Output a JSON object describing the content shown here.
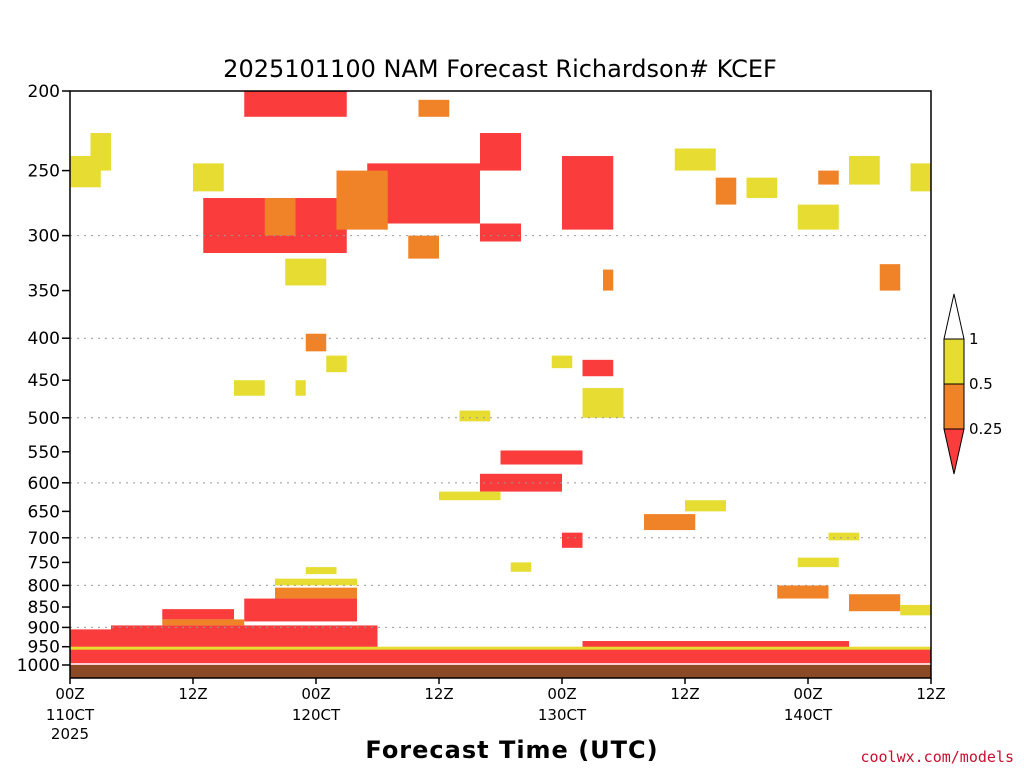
{
  "chart_data": {
    "type": "heatmap",
    "title": "2025101100 NAM Forecast Richardson# KCEF",
    "xlabel": "Forecast Time (UTC)",
    "ylabel": "",
    "y_axis_scale": "log-pressure",
    "ylim": [
      1000,
      200
    ],
    "y_ticks": [
      "200",
      "250",
      "300",
      "350",
      "400",
      "450",
      "500",
      "550",
      "600",
      "650",
      "700",
      "750",
      "800",
      "850",
      "900",
      "950",
      "1000"
    ],
    "y_tick_values": [
      200,
      250,
      300,
      350,
      400,
      450,
      500,
      550,
      600,
      650,
      700,
      750,
      800,
      850,
      900,
      950,
      1000
    ],
    "gridlines_at": [
      300,
      400,
      500,
      600,
      700,
      800,
      900
    ],
    "x_range_hours": [
      0,
      84
    ],
    "x_ticks": [
      {
        "hour": 0,
        "label": "00Z",
        "date": "110CT",
        "year": "2025"
      },
      {
        "hour": 12,
        "label": "12Z",
        "date": "",
        "year": ""
      },
      {
        "hour": 24,
        "label": "00Z",
        "date": "120CT",
        "year": ""
      },
      {
        "hour": 36,
        "label": "12Z",
        "date": "",
        "year": ""
      },
      {
        "hour": 48,
        "label": "00Z",
        "date": "130CT",
        "year": ""
      },
      {
        "hour": 60,
        "label": "12Z",
        "date": "",
        "year": ""
      },
      {
        "hour": 72,
        "label": "00Z",
        "date": "140CT",
        "year": ""
      },
      {
        "hour": 84,
        "label": "12Z",
        "date": "",
        "year": ""
      }
    ],
    "colorbar": {
      "levels": [
        "1",
        "0.5",
        "0.25"
      ],
      "bins": [
        {
          "range": ">1",
          "color": "#ffffff"
        },
        {
          "range": "0.5-1",
          "color": "#e6dc32"
        },
        {
          "range": "0.25-0.5",
          "color": "#f08228"
        },
        {
          "range": "<0.25",
          "color": "#fa3c3c"
        }
      ]
    },
    "regions": [
      {
        "cat": "low",
        "h0": 17,
        "h1": 27,
        "p0": 200,
        "p1": 215
      },
      {
        "cat": "low",
        "h0": 13,
        "h1": 27,
        "p0": 270,
        "p1": 315
      },
      {
        "cat": "low",
        "h0": 29,
        "h1": 40,
        "p0": 245,
        "p1": 290
      },
      {
        "cat": "low",
        "h0": 40,
        "h1": 44,
        "p0": 290,
        "p1": 305
      },
      {
        "cat": "low",
        "h0": 40,
        "h1": 44,
        "p0": 225,
        "p1": 250
      },
      {
        "cat": "low",
        "h0": 48,
        "h1": 53,
        "p0": 240,
        "p1": 295
      },
      {
        "cat": "low",
        "h0": 50,
        "h1": 53,
        "p0": 425,
        "p1": 445
      },
      {
        "cat": "low",
        "h0": 42,
        "h1": 50,
        "p0": 548,
        "p1": 570
      },
      {
        "cat": "low",
        "h0": 40,
        "h1": 48,
        "p0": 585,
        "p1": 615
      },
      {
        "cat": "low",
        "h0": 48,
        "h1": 50,
        "p0": 690,
        "p1": 720
      },
      {
        "cat": "mid",
        "h0": 19,
        "h1": 22,
        "p0": 270,
        "p1": 300
      },
      {
        "cat": "mid",
        "h0": 26,
        "h1": 31,
        "p0": 250,
        "p1": 295
      },
      {
        "cat": "mid",
        "h0": 33,
        "h1": 36,
        "p0": 300,
        "p1": 320
      },
      {
        "cat": "mid",
        "h0": 34,
        "h1": 37,
        "p0": 205,
        "p1": 215
      },
      {
        "cat": "mid",
        "h0": 23,
        "h1": 25,
        "p0": 395,
        "p1": 415
      },
      {
        "cat": "mid",
        "h0": 52,
        "h1": 53,
        "p0": 330,
        "p1": 350
      },
      {
        "cat": "mid",
        "h0": 63,
        "h1": 65,
        "p0": 255,
        "p1": 275
      },
      {
        "cat": "mid",
        "h0": 73,
        "h1": 75,
        "p0": 250,
        "p1": 260
      },
      {
        "cat": "mid",
        "h0": 79,
        "h1": 81,
        "p0": 325,
        "p1": 350
      },
      {
        "cat": "mid",
        "h0": 76,
        "h1": 81,
        "p0": 820,
        "p1": 860
      },
      {
        "cat": "mid",
        "h0": 69,
        "h1": 74,
        "p0": 800,
        "p1": 830
      },
      {
        "cat": "mid",
        "h0": 56,
        "h1": 61,
        "p0": 655,
        "p1": 685
      },
      {
        "cat": "high",
        "h0": 12,
        "h1": 15,
        "p0": 245,
        "p1": 265
      },
      {
        "cat": "high",
        "h0": 0,
        "h1": 3,
        "p0": 240,
        "p1": 262
      },
      {
        "cat": "high",
        "h0": 2,
        "h1": 4,
        "p0": 225,
        "p1": 250
      },
      {
        "cat": "high",
        "h0": 21,
        "h1": 25,
        "p0": 320,
        "p1": 345
      },
      {
        "cat": "high",
        "h0": 25,
        "h1": 27,
        "p0": 420,
        "p1": 440
      },
      {
        "cat": "high",
        "h0": 16,
        "h1": 19,
        "p0": 450,
        "p1": 470
      },
      {
        "cat": "high",
        "h0": 22,
        "h1": 23,
        "p0": 450,
        "p1": 470
      },
      {
        "cat": "high",
        "h0": 38,
        "h1": 41,
        "p0": 490,
        "p1": 505
      },
      {
        "cat": "high",
        "h0": 47,
        "h1": 49,
        "p0": 420,
        "p1": 435
      },
      {
        "cat": "high",
        "h0": 50,
        "h1": 54,
        "p0": 460,
        "p1": 500
      },
      {
        "cat": "high",
        "h0": 36,
        "h1": 42,
        "p0": 615,
        "p1": 630
      },
      {
        "cat": "high",
        "h0": 60,
        "h1": 64,
        "p0": 630,
        "p1": 650
      },
      {
        "cat": "high",
        "h0": 59,
        "h1": 63,
        "p0": 235,
        "p1": 250
      },
      {
        "cat": "high",
        "h0": 71,
        "h1": 75,
        "p0": 275,
        "p1": 295
      },
      {
        "cat": "high",
        "h0": 76,
        "h1": 79,
        "p0": 240,
        "p1": 260
      },
      {
        "cat": "high",
        "h0": 82,
        "h1": 84,
        "p0": 245,
        "p1": 265
      },
      {
        "cat": "high",
        "h0": 74,
        "h1": 77,
        "p0": 690,
        "p1": 705
      },
      {
        "cat": "high",
        "h0": 71,
        "h1": 75,
        "p0": 740,
        "p1": 760
      },
      {
        "cat": "high",
        "h0": 23,
        "h1": 26,
        "p0": 760,
        "p1": 775
      },
      {
        "cat": "high",
        "h0": 81,
        "h1": 84,
        "p0": 845,
        "p1": 870
      },
      {
        "cat": "high",
        "h0": 20,
        "h1": 28,
        "p0": 785,
        "p1": 800
      },
      {
        "cat": "high",
        "h0": 43,
        "h1": 45,
        "p0": 750,
        "p1": 770
      },
      {
        "cat": "high",
        "h0": 66,
        "h1": 69,
        "p0": 255,
        "p1": 270
      }
    ],
    "boundary_layer": [
      {
        "cat": "low",
        "h0": 0,
        "h1": 84,
        "p0": 955,
        "p1": 1015
      },
      {
        "cat": "low",
        "h0": 0,
        "h1": 4,
        "p0": 905,
        "p1": 955
      },
      {
        "cat": "low",
        "h0": 4,
        "h1": 30,
        "p0": 895,
        "p1": 955
      },
      {
        "cat": "low",
        "h0": 17,
        "h1": 28,
        "p0": 830,
        "p1": 885
      },
      {
        "cat": "low",
        "h0": 9,
        "h1": 16,
        "p0": 855,
        "p1": 880
      },
      {
        "cat": "low",
        "h0": 50,
        "h1": 76,
        "p0": 935,
        "p1": 955
      },
      {
        "cat": "mid",
        "h0": 20,
        "h1": 28,
        "p0": 805,
        "p1": 830
      },
      {
        "cat": "mid",
        "h0": 9,
        "h1": 17,
        "p0": 880,
        "p1": 895
      },
      {
        "cat": "high",
        "h0": 0,
        "h1": 84,
        "p0": 950,
        "p1": 958
      }
    ]
  },
  "credit": "coolwx.com/models",
  "colors": {
    "cat_high": "#e6dc32",
    "cat_mid": "#f08228",
    "cat_low": "#fa3c3c",
    "ground": "#8b4a26"
  }
}
